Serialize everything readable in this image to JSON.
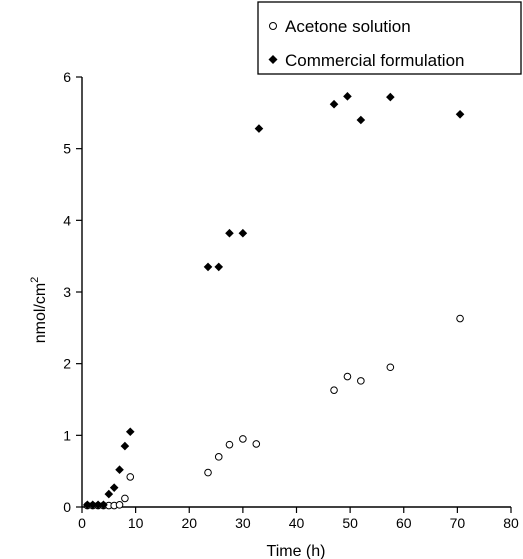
{
  "chart_data": {
    "type": "scatter",
    "xlabel": "Time (h)",
    "ylabel": "nmol/cm",
    "ylabel_sup": "2",
    "xlim": [
      0,
      80
    ],
    "ylim": [
      0,
      6
    ],
    "x_ticks": [
      0,
      10,
      20,
      30,
      40,
      50,
      60,
      70,
      80
    ],
    "y_ticks": [
      0,
      1,
      2,
      3,
      4,
      5,
      6
    ],
    "x_tick_labels": [
      "0",
      "10",
      "20",
      "30",
      "40",
      "50",
      "60",
      "70",
      "80"
    ],
    "y_tick_labels": [
      "0",
      "1",
      "2",
      "3",
      "4",
      "5",
      "6"
    ],
    "grid": false,
    "legend_position": "top-right",
    "series": [
      {
        "name": "Acetone solution",
        "marker": "open-circle",
        "color": "#000000",
        "points": [
          [
            1,
            0.02
          ],
          [
            2,
            0.02
          ],
          [
            3,
            0.02
          ],
          [
            4,
            0.02
          ],
          [
            5,
            0.02
          ],
          [
            6,
            0.02
          ],
          [
            7,
            0.03
          ],
          [
            8,
            0.12
          ],
          [
            9,
            0.42
          ],
          [
            23.5,
            0.48
          ],
          [
            25.5,
            0.7
          ],
          [
            27.5,
            0.87
          ],
          [
            30,
            0.95
          ],
          [
            32.5,
            0.88
          ],
          [
            47,
            1.63
          ],
          [
            49.5,
            1.82
          ],
          [
            52,
            1.76
          ],
          [
            57.5,
            1.95
          ],
          [
            70.5,
            2.63
          ]
        ]
      },
      {
        "name": "Commercial formulation",
        "marker": "filled-diamond",
        "color": "#000000",
        "points": [
          [
            1,
            0.03
          ],
          [
            2,
            0.03
          ],
          [
            3,
            0.03
          ],
          [
            4,
            0.03
          ],
          [
            5,
            0.18
          ],
          [
            6,
            0.27
          ],
          [
            7,
            0.52
          ],
          [
            8,
            0.85
          ],
          [
            9,
            1.05
          ],
          [
            23.5,
            3.35
          ],
          [
            25.5,
            3.35
          ],
          [
            27.5,
            3.82
          ],
          [
            30,
            3.82
          ],
          [
            33,
            5.28
          ],
          [
            47,
            5.62
          ],
          [
            49.5,
            5.73
          ],
          [
            52,
            5.4
          ],
          [
            57.5,
            5.72
          ],
          [
            70.5,
            5.48
          ]
        ]
      }
    ]
  }
}
